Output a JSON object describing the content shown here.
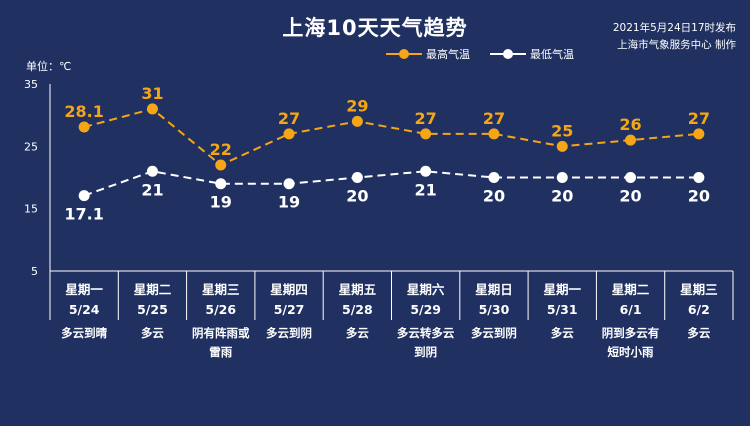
{
  "header": {
    "title": "上海10天天气趋势",
    "publish_time": "2021年5月24日17时发布",
    "publisher": "上海市气象服务中心 制作",
    "unit": "单位：℃"
  },
  "colors": {
    "background": "#1f3061",
    "high": "#f5a616",
    "low": "#ffffff",
    "axis": "#ffffff"
  },
  "chart_data": {
    "type": "line",
    "categories": [
      "星期一",
      "星期二",
      "星期三",
      "星期四",
      "星期五",
      "星期六",
      "星期日",
      "星期一",
      "星期二",
      "星期三"
    ],
    "dates": [
      "5/24",
      "5/25",
      "5/26",
      "5/27",
      "5/28",
      "5/29",
      "5/30",
      "5/31",
      "6/1",
      "6/2"
    ],
    "conditions": [
      [
        "多云到晴"
      ],
      [
        "多云"
      ],
      [
        "阴有阵雨或",
        "雷雨"
      ],
      [
        "多云到阴"
      ],
      [
        "多云"
      ],
      [
        "多云转多云",
        "到阴"
      ],
      [
        "多云到阴"
      ],
      [
        "多云"
      ],
      [
        "阴到多云有",
        "短时小雨"
      ],
      [
        "多云"
      ]
    ],
    "series": [
      {
        "name": "最高气温",
        "values": [
          28.1,
          31,
          22,
          27,
          29,
          27,
          27,
          25,
          26,
          27
        ],
        "labels": [
          "28.1",
          "31",
          "22",
          "27",
          "29",
          "27",
          "27",
          "25",
          "26",
          "27"
        ]
      },
      {
        "name": "最低气温",
        "values": [
          17.1,
          21,
          19,
          19,
          20,
          21,
          20,
          20,
          20,
          20
        ],
        "labels": [
          "17.1",
          "21",
          "19",
          "19",
          "20",
          "21",
          "20",
          "20",
          "20",
          "20"
        ]
      }
    ],
    "ylim": [
      5,
      35
    ],
    "yticks": [
      5,
      15,
      25,
      35
    ],
    "ylabel": "℃",
    "legend": "top-right",
    "grid": false
  }
}
